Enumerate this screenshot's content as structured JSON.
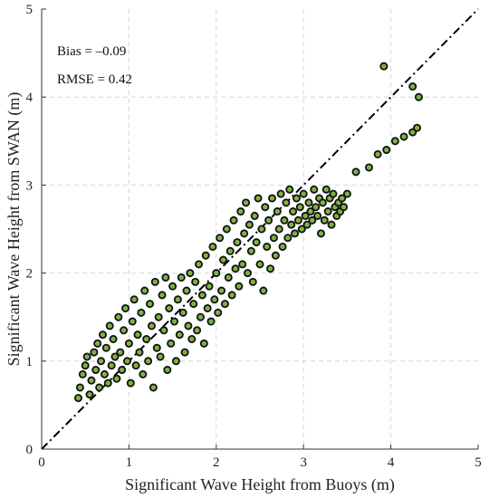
{
  "chart_data": {
    "type": "scatter",
    "xlabel": "Significant Wave Height from Buoys (m)",
    "ylabel": "Significant Wave Height from SWAN (m)",
    "xlim": [
      0,
      5
    ],
    "ylim": [
      0,
      5
    ],
    "x_ticks": [
      "0",
      "1",
      "2",
      "3",
      "4",
      "5"
    ],
    "y_ticks": [
      "0",
      "1",
      "2",
      "3",
      "4",
      "5"
    ],
    "grid": true,
    "annotations": [
      "Bias = –0.09",
      "RMSE = 0.42"
    ],
    "reference_line": {
      "style": "dash-dot",
      "from": [
        0,
        0
      ],
      "to": [
        5,
        5
      ],
      "color": "#000000"
    },
    "marker": {
      "fill": "#7cb342",
      "edge": "#111111"
    },
    "series": [
      {
        "points": [
          [
            0.42,
            0.58
          ],
          [
            0.44,
            0.7
          ],
          [
            0.47,
            0.85
          ],
          [
            0.5,
            0.95
          ],
          [
            0.52,
            1.05
          ],
          [
            0.55,
            0.62
          ],
          [
            0.57,
            0.78
          ],
          [
            0.6,
            1.1
          ],
          [
            0.62,
            0.9
          ],
          [
            0.64,
            1.2
          ],
          [
            0.66,
            0.7
          ],
          [
            0.68,
            1.0
          ],
          [
            0.7,
            1.3
          ],
          [
            0.72,
            0.85
          ],
          [
            0.74,
            1.15
          ],
          [
            0.76,
            0.75
          ],
          [
            0.78,
            1.4
          ],
          [
            0.8,
            0.95
          ],
          [
            0.82,
            1.25
          ],
          [
            0.84,
            1.05
          ],
          [
            0.86,
            0.8
          ],
          [
            0.88,
            1.5
          ],
          [
            0.9,
            1.1
          ],
          [
            0.92,
            0.9
          ],
          [
            0.94,
            1.35
          ],
          [
            0.96,
            1.6
          ],
          [
            0.98,
            1.0
          ],
          [
            1.0,
            1.2
          ],
          [
            1.02,
            0.75
          ],
          [
            1.04,
            1.45
          ],
          [
            1.06,
            1.7
          ],
          [
            1.08,
            0.95
          ],
          [
            1.1,
            1.3
          ],
          [
            1.12,
            1.1
          ],
          [
            1.14,
            1.55
          ],
          [
            1.16,
            0.85
          ],
          [
            1.18,
            1.8
          ],
          [
            1.2,
            1.25
          ],
          [
            1.22,
            1.0
          ],
          [
            1.24,
            1.65
          ],
          [
            1.26,
            1.4
          ],
          [
            1.28,
            0.7
          ],
          [
            1.3,
            1.9
          ],
          [
            1.32,
            1.15
          ],
          [
            1.34,
            1.5
          ],
          [
            1.36,
            1.05
          ],
          [
            1.38,
            1.75
          ],
          [
            1.4,
            1.35
          ],
          [
            1.42,
            1.95
          ],
          [
            1.44,
            0.9
          ],
          [
            1.46,
            1.6
          ],
          [
            1.48,
            1.2
          ],
          [
            1.5,
            1.85
          ],
          [
            1.52,
            1.45
          ],
          [
            1.54,
            1.0
          ],
          [
            1.56,
            1.7
          ],
          [
            1.58,
            1.3
          ],
          [
            1.6,
            1.95
          ],
          [
            1.62,
            1.55
          ],
          [
            1.64,
            1.1
          ],
          [
            1.66,
            1.8
          ],
          [
            1.68,
            1.4
          ],
          [
            1.7,
            2.0
          ],
          [
            1.72,
            1.25
          ],
          [
            1.74,
            1.65
          ],
          [
            1.76,
            1.9
          ],
          [
            1.78,
            1.35
          ],
          [
            1.8,
            2.1
          ],
          [
            1.82,
            1.5
          ],
          [
            1.84,
            1.75
          ],
          [
            1.86,
            1.2
          ],
          [
            1.88,
            2.2
          ],
          [
            1.9,
            1.6
          ],
          [
            1.92,
            1.85
          ],
          [
            1.94,
            1.45
          ],
          [
            1.96,
            2.3
          ],
          [
            1.98,
            1.7
          ],
          [
            2.0,
            2.0
          ],
          [
            2.02,
            1.55
          ],
          [
            2.04,
            2.4
          ],
          [
            2.06,
            1.8
          ],
          [
            2.08,
            2.15
          ],
          [
            2.1,
            1.65
          ],
          [
            2.12,
            2.5
          ],
          [
            2.14,
            1.95
          ],
          [
            2.16,
            2.25
          ],
          [
            2.18,
            1.75
          ],
          [
            2.2,
            2.6
          ],
          [
            2.22,
            2.05
          ],
          [
            2.24,
            2.35
          ],
          [
            2.26,
            1.85
          ],
          [
            2.28,
            2.7
          ],
          [
            2.3,
            2.1
          ],
          [
            2.32,
            2.45
          ],
          [
            2.34,
            2.8
          ],
          [
            2.36,
            2.0
          ],
          [
            2.38,
            2.55
          ],
          [
            2.4,
            2.25
          ],
          [
            2.42,
            1.9
          ],
          [
            2.44,
            2.65
          ],
          [
            2.46,
            2.35
          ],
          [
            2.48,
            2.85
          ],
          [
            2.5,
            2.1
          ],
          [
            2.52,
            2.5
          ],
          [
            2.54,
            1.8
          ],
          [
            2.56,
            2.75
          ],
          [
            2.58,
            2.3
          ],
          [
            2.6,
            2.6
          ],
          [
            2.62,
            2.05
          ],
          [
            2.64,
            2.85
          ],
          [
            2.66,
            2.4
          ],
          [
            2.68,
            2.2
          ],
          [
            2.7,
            2.7
          ],
          [
            2.72,
            2.5
          ],
          [
            2.74,
            2.9
          ],
          [
            2.76,
            2.3
          ],
          [
            2.78,
            2.6
          ],
          [
            2.8,
            2.8
          ],
          [
            2.82,
            2.4
          ],
          [
            2.84,
            2.95
          ],
          [
            2.86,
            2.55
          ],
          [
            2.88,
            2.7
          ],
          [
            2.9,
            2.45
          ],
          [
            2.92,
            2.85
          ],
          [
            2.94,
            2.6
          ],
          [
            2.96,
            2.75
          ],
          [
            2.98,
            2.5
          ],
          [
            3.0,
            2.9
          ],
          [
            3.02,
            2.65
          ],
          [
            3.04,
            2.55
          ],
          [
            3.06,
            2.8
          ],
          [
            3.08,
            2.7
          ],
          [
            3.1,
            2.6
          ],
          [
            3.12,
            2.95
          ],
          [
            3.14,
            2.75
          ],
          [
            3.16,
            2.65
          ],
          [
            3.18,
            2.85
          ],
          [
            3.2,
            2.45
          ],
          [
            3.22,
            2.8
          ],
          [
            3.24,
            2.6
          ],
          [
            3.26,
            2.95
          ],
          [
            3.28,
            2.7
          ],
          [
            3.3,
            2.85
          ],
          [
            3.32,
            2.55
          ],
          [
            3.34,
            2.9
          ],
          [
            3.36,
            2.75
          ],
          [
            3.38,
            2.65
          ],
          [
            3.4,
            2.8
          ],
          [
            3.42,
            2.7
          ],
          [
            3.44,
            2.85
          ],
          [
            3.46,
            2.75
          ],
          [
            3.5,
            2.9
          ],
          [
            3.6,
            3.15
          ],
          [
            3.75,
            3.2
          ],
          [
            3.85,
            3.35
          ],
          [
            3.92,
            4.35
          ],
          [
            3.95,
            3.4
          ],
          [
            4.05,
            3.5
          ],
          [
            4.15,
            3.55
          ],
          [
            4.25,
            3.6
          ],
          [
            4.25,
            4.12
          ],
          [
            4.3,
            3.65
          ],
          [
            4.32,
            4.0
          ]
        ]
      }
    ]
  }
}
